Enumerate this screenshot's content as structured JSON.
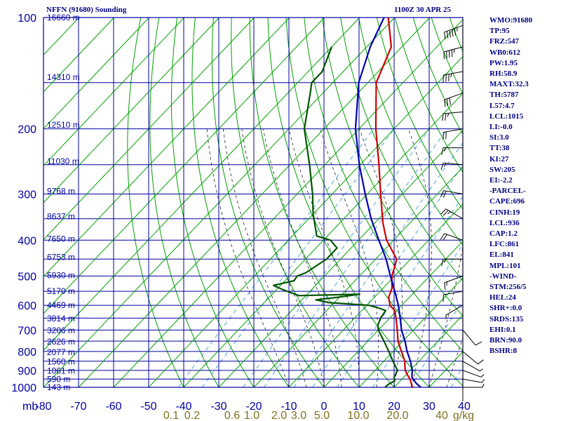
{
  "header": {
    "title": "NFFN (91680) Sounding",
    "datetime": "1100Z 30 APR 25"
  },
  "indices": [
    "WMO:91680",
    "TP:95",
    "FRZ:547",
    "WB0:612",
    "PW:1.95",
    "RH:58.9",
    "MAXT:32.3",
    "TH:5787",
    "L57:4.7",
    "LCL:1015",
    "LI:-0.0",
    "SI:3.0",
    "TT:38",
    "KI:27",
    "SW:205",
    "EI:-2.2",
    "-PARCEL-",
    "CAPE:696",
    "CINH:19",
    "LCL:936",
    "CAP:1.2",
    "LFC:861",
    "EL:841",
    "MPL:101",
    "-WIND-",
    "STM:256/5",
    "HEL:24",
    "SHR+:0.0",
    "SRDS:135",
    "EHI:0.1",
    "BRN:90.0",
    "BSHR:8"
  ],
  "chart_data": {
    "type": "line",
    "title": "NFFN (91680) Sounding",
    "subtitle": "1100Z 30 APR 25",
    "xlabel": "",
    "ylabel": "mb",
    "y_scale": "log-pressure",
    "ylim": [
      1000,
      100
    ],
    "xlim": [
      -80,
      40
    ],
    "pressure_ticks": [
      "100",
      "200",
      "300",
      "400",
      "500",
      "600",
      "700",
      "800",
      "900",
      "1000"
    ],
    "pressure_levels": [
      100,
      150,
      200,
      250,
      300,
      350,
      400,
      450,
      500,
      550,
      600,
      650,
      700,
      750,
      800,
      850,
      900,
      950,
      1000
    ],
    "temperature_ticks": [
      "-80",
      "-70",
      "-60",
      "-50",
      "-40",
      "-30",
      "-20",
      "-10",
      "0",
      "10",
      "20",
      "30",
      "40"
    ],
    "temperature_tick_values": [
      -80,
      -70,
      -60,
      -50,
      -40,
      -30,
      -20,
      -10,
      0,
      10,
      20,
      30,
      40
    ],
    "mixing_ratio_labels": [
      "0.1",
      "0.2",
      "0.6",
      "1.0",
      "2.0",
      "3.0",
      "5.0",
      "10.0",
      "20.0",
      "40",
      "g/kg"
    ],
    "mixing_ratio_values": [
      0.1,
      0.2,
      0.6,
      1.0,
      2.0,
      3.0,
      5.0,
      10.0,
      20.0,
      40
    ],
    "height_labels": [
      {
        "label": "16660 m",
        "p": 100
      },
      {
        "label": "14310 m",
        "p": 145
      },
      {
        "label": "12510 m",
        "p": 195
      },
      {
        "label": "11030 m",
        "p": 245
      },
      {
        "label": "9768 m",
        "p": 295
      },
      {
        "label": "8637 m",
        "p": 345
      },
      {
        "label": "7650 m",
        "p": 397
      },
      {
        "label": "6753 m",
        "p": 445
      },
      {
        "label": "5930 m",
        "p": 498
      },
      {
        "label": "5170 m",
        "p": 550
      },
      {
        "label": "4469 m",
        "p": 600
      },
      {
        "label": "3814 m",
        "p": 652
      },
      {
        "label": "3206 m",
        "p": 702
      },
      {
        "label": "2626 m",
        "p": 752
      },
      {
        "label": "2077 m",
        "p": 803
      },
      {
        "label": "1560 m",
        "p": 852
      },
      {
        "label": "1061 m",
        "p": 903
      },
      {
        "label": "590 m",
        "p": 950
      },
      {
        "label": "143 m",
        "p": 1000
      }
    ],
    "series": [
      {
        "name": "",
        "role": "temperature",
        "color": "#cc0000",
        "points": [
          [
            1000,
            25.4
          ],
          [
            990,
            24.6
          ],
          [
            975,
            23.8
          ],
          [
            950,
            22.3
          ],
          [
            925,
            20.4
          ],
          [
            900,
            18.6
          ],
          [
            870,
            17.0
          ],
          [
            850,
            16.0
          ],
          [
            800,
            12.4
          ],
          [
            750,
            8.6
          ],
          [
            700,
            5.4
          ],
          [
            650,
            1.8
          ],
          [
            620,
            -0.6
          ],
          [
            600,
            -3.4
          ],
          [
            570,
            -6.0
          ],
          [
            540,
            -7.4
          ],
          [
            500,
            -10.8
          ],
          [
            470,
            -12.6
          ],
          [
            450,
            -14.0
          ],
          [
            400,
            -22.0
          ],
          [
            360,
            -27.6
          ],
          [
            300,
            -36.2
          ],
          [
            250,
            -44.6
          ],
          [
            200,
            -55.2
          ],
          [
            150,
            -67.6
          ],
          [
            120,
            -73.0
          ],
          [
            100,
            -81.8
          ]
        ]
      },
      {
        "name": "",
        "role": "dewpoint",
        "color": "#005500",
        "points": [
          [
            1000,
            17.4
          ],
          [
            980,
            17.6
          ],
          [
            960,
            18.4
          ],
          [
            940,
            17.3
          ],
          [
            900,
            16.4
          ],
          [
            850,
            12.6
          ],
          [
            800,
            8.8
          ],
          [
            750,
            4.6
          ],
          [
            700,
            0.0
          ],
          [
            680,
            -1.4
          ],
          [
            650,
            -2.6
          ],
          [
            620,
            -3.2
          ],
          [
            610,
            -6.0
          ],
          [
            600,
            -9.4
          ],
          [
            590,
            -21.6
          ],
          [
            580,
            -26.0
          ],
          [
            570,
            -20.0
          ],
          [
            560,
            -15.0
          ],
          [
            565,
            -32.0
          ],
          [
            545,
            -38.0
          ],
          [
            530,
            -42.0
          ],
          [
            515,
            -37.4
          ],
          [
            500,
            -37.8
          ],
          [
            490,
            -36.2
          ],
          [
            450,
            -34.0
          ],
          [
            420,
            -34.0
          ],
          [
            400,
            -38.0
          ],
          [
            390,
            -43.0
          ],
          [
            340,
            -50.0
          ],
          [
            300,
            -55.6
          ],
          [
            250,
            -64.4
          ],
          [
            200,
            -75.6
          ],
          [
            160,
            -83.6
          ],
          [
            150,
            -86.0
          ],
          [
            140,
            -86.0
          ],
          [
            120,
            -90.0
          ]
        ]
      },
      {
        "name": "",
        "role": "parcel",
        "color": "#0000b0",
        "points": [
          [
            1000,
            27.6
          ],
          [
            975,
            25.2
          ],
          [
            950,
            23.2
          ],
          [
            936,
            22.2
          ],
          [
            900,
            20.6
          ],
          [
            850,
            17.6
          ],
          [
            800,
            14.0
          ],
          [
            750,
            10.6
          ],
          [
            700,
            6.6
          ],
          [
            650,
            3.0
          ],
          [
            600,
            -1.0
          ],
          [
            550,
            -5.8
          ],
          [
            500,
            -11.2
          ],
          [
            450,
            -17.0
          ],
          [
            400,
            -24.2
          ],
          [
            350,
            -32.2
          ],
          [
            300,
            -40.6
          ],
          [
            250,
            -50.2
          ],
          [
            200,
            -61.0
          ],
          [
            150,
            -72.6
          ],
          [
            120,
            -79.0
          ],
          [
            100,
            -83.0
          ]
        ]
      }
    ],
    "wind_barbs": [
      {
        "p": 105,
        "dir": 250,
        "spd": 55
      },
      {
        "p": 120,
        "dir": 255,
        "spd": 45
      },
      {
        "p": 140,
        "dir": 260,
        "spd": 35
      },
      {
        "p": 160,
        "dir": 250,
        "spd": 30
      },
      {
        "p": 180,
        "dir": 265,
        "spd": 25
      },
      {
        "p": 200,
        "dir": 260,
        "spd": 20
      },
      {
        "p": 225,
        "dir": 270,
        "spd": 15
      },
      {
        "p": 250,
        "dir": 275,
        "spd": 15
      },
      {
        "p": 300,
        "dir": 280,
        "spd": 20
      },
      {
        "p": 350,
        "dir": 300,
        "spd": 25
      },
      {
        "p": 400,
        "dir": 290,
        "spd": 20
      },
      {
        "p": 450,
        "dir": 270,
        "spd": 15
      },
      {
        "p": 500,
        "dir": 250,
        "spd": 15
      },
      {
        "p": 550,
        "dir": 260,
        "spd": 10
      },
      {
        "p": 600,
        "dir": 240,
        "spd": 5
      },
      {
        "p": 700,
        "dir": 140,
        "spd": 10
      },
      {
        "p": 800,
        "dir": 130,
        "spd": 10
      },
      {
        "p": 850,
        "dir": 120,
        "spd": 5
      },
      {
        "p": 900,
        "dir": 110,
        "spd": 5
      },
      {
        "p": 950,
        "dir": 100,
        "spd": 5
      },
      {
        "p": 1000,
        "dir": 90,
        "spd": 5
      }
    ]
  }
}
